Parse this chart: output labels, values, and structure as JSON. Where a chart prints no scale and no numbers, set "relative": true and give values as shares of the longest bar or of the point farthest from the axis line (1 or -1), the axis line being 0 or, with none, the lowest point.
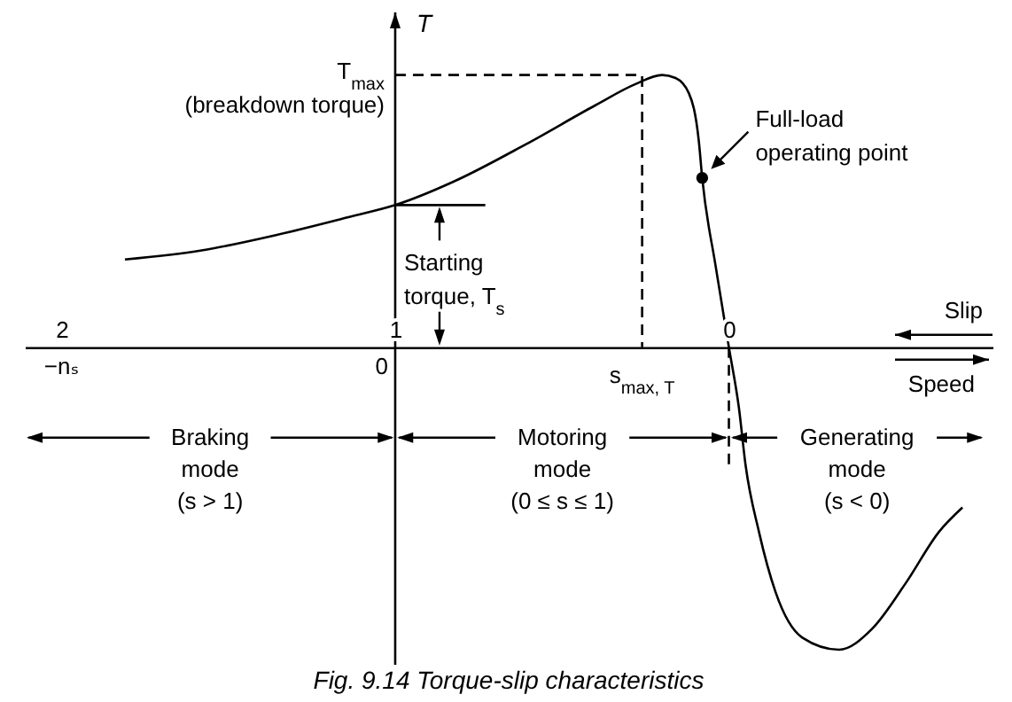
{
  "chart_data": {
    "type": "line",
    "relative": true,
    "title": "Fig. 9.14  Torque-slip characteristics",
    "xlabel": "Slip",
    "ylabel": "T",
    "xlim": [
      2.11,
      -0.79
    ],
    "xticks": [
      2,
      1,
      0
    ],
    "series": [
      {
        "color": "#000000",
        "x": [
          1.81,
          1.58,
          1.36,
          1.14,
          1,
          0.82,
          0.61,
          0.4,
          0.28,
          0.2,
          0.16,
          0.12,
          0.09,
          0.08,
          0.04,
          0,
          -0.03,
          -0.05,
          -0.09,
          -0.14,
          -0.22,
          -0.33,
          -0.43,
          -0.53,
          -0.63,
          -0.7
        ],
        "values": [
          0.29,
          0.32,
          0.37,
          0.43,
          0.47,
          0.55,
          0.67,
          0.8,
          0.87,
          0.9,
          0.89,
          0.84,
          0.68,
          0.56,
          0.27,
          0,
          -0.2,
          -0.39,
          -0.61,
          -0.81,
          -0.96,
          -1,
          -0.93,
          -0.78,
          -0.61,
          -0.53
        ]
      },
      {
        "color": "#000000",
        "line_style": "dashed",
        "x": [
          1,
          0.26,
          0.26
        ],
        "values": [
          0.9,
          0.9,
          0
        ]
      },
      {
        "color": "#000000",
        "line_style": "dashed",
        "x": [
          0,
          0
        ],
        "values": [
          0,
          -0.39
        ]
      },
      {
        "color": "#000000",
        "x": [
          1,
          0.73
        ],
        "values": [
          0.47,
          0.47
        ]
      },
      {
        "type": "scatter",
        "marker": "circle",
        "color": "#000000",
        "x": [
          0.08
        ],
        "values": [
          0.56
        ]
      }
    ],
    "ref_lines": [
      {
        "axis": "x",
        "value": 1
      }
    ],
    "annotations": [
      {
        "text": "T$_{max}$\n(breakdown torque)",
        "x": 1,
        "y": 0.9
      },
      {
        "text": "Full-load\noperating point",
        "x": 0.08,
        "y": 0.56
      },
      {
        "text": "Starting\ntorque, T$_{s}$",
        "x": 1,
        "y": 0.47
      },
      {
        "text": "s$_{max, T}$",
        "x": 0.26,
        "y": 0
      },
      "−nₛ",
      {
        "text": "0",
        "x": 1,
        "y": 0
      },
      "Speed",
      "Braking\nmode\n(s > 1)",
      "Motoring\nmode\n(0 ≤ s ≤ 1)",
      "Generating\nmode\n(s < 0)"
    ]
  }
}
